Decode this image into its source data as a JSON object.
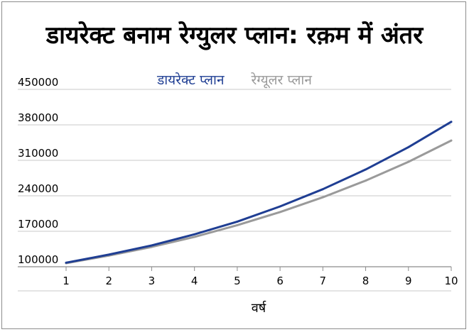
{
  "chart_data": {
    "type": "line",
    "title": "डायरेक्ट बनाम रेग्युलर प्लान: रक़म में अंतर",
    "xlabel": "वर्ष",
    "ylabel": "",
    "x": [
      1,
      2,
      3,
      4,
      5,
      6,
      7,
      8,
      9,
      10
    ],
    "xlim": [
      1,
      10
    ],
    "ylim": [
      100000,
      450000
    ],
    "yticks": [
      100000,
      170000,
      240000,
      310000,
      380000,
      450000
    ],
    "grid": true,
    "legend_position": "top",
    "series": [
      {
        "name": "डायरेक्ट प्लान",
        "color": "#1f3e93",
        "values": [
          108000,
          124000,
          142000,
          164000,
          189000,
          219000,
          253000,
          292000,
          336000,
          386000
        ]
      },
      {
        "name": "रेग्यूलर प्लान",
        "color": "#9a9a9a",
        "values": [
          107000,
          122000,
          139000,
          159000,
          182000,
          208000,
          237000,
          270000,
          307000,
          349000
        ]
      }
    ]
  }
}
